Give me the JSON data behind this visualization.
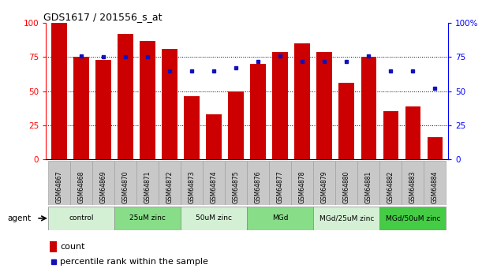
{
  "title": "GDS1617 / 201556_s_at",
  "samples": [
    "GSM64867",
    "GSM64868",
    "GSM64869",
    "GSM64870",
    "GSM64871",
    "GSM64872",
    "GSM64873",
    "GSM64874",
    "GSM64875",
    "GSM64876",
    "GSM64877",
    "GSM64878",
    "GSM64879",
    "GSM64880",
    "GSM64881",
    "GSM64882",
    "GSM64883",
    "GSM64884"
  ],
  "bar_values": [
    100,
    75,
    73,
    92,
    87,
    81,
    46,
    33,
    50,
    70,
    79,
    85,
    79,
    56,
    75,
    35,
    39,
    16
  ],
  "dot_values": [
    null,
    76,
    75,
    75,
    75,
    65,
    65,
    65,
    67,
    72,
    76,
    72,
    72,
    72,
    76,
    65,
    65,
    52
  ],
  "bar_color": "#cc0000",
  "dot_color": "#1111bb",
  "groups": [
    {
      "label": "control",
      "start": 0,
      "end": 2,
      "color": "#d4f0d4"
    },
    {
      "label": "25uM zinc",
      "start": 3,
      "end": 5,
      "color": "#88dd88"
    },
    {
      "label": "50uM zinc",
      "start": 6,
      "end": 8,
      "color": "#d4f0d4"
    },
    {
      "label": "MGd",
      "start": 9,
      "end": 11,
      "color": "#88dd88"
    },
    {
      "label": "MGd/25uM zinc",
      "start": 12,
      "end": 14,
      "color": "#d4f0d4"
    },
    {
      "label": "MGd/50uM zinc",
      "start": 15,
      "end": 17,
      "color": "#44cc44"
    }
  ],
  "ylim": [
    0,
    100
  ],
  "yticks": [
    0,
    25,
    50,
    75,
    100
  ],
  "right_ytick_labels": [
    "0",
    "25",
    "50",
    "75",
    "100%"
  ],
  "background_color": "#ffffff",
  "agent_label": "agent",
  "legend_count_label": "count",
  "legend_pct_label": "percentile rank within the sample"
}
